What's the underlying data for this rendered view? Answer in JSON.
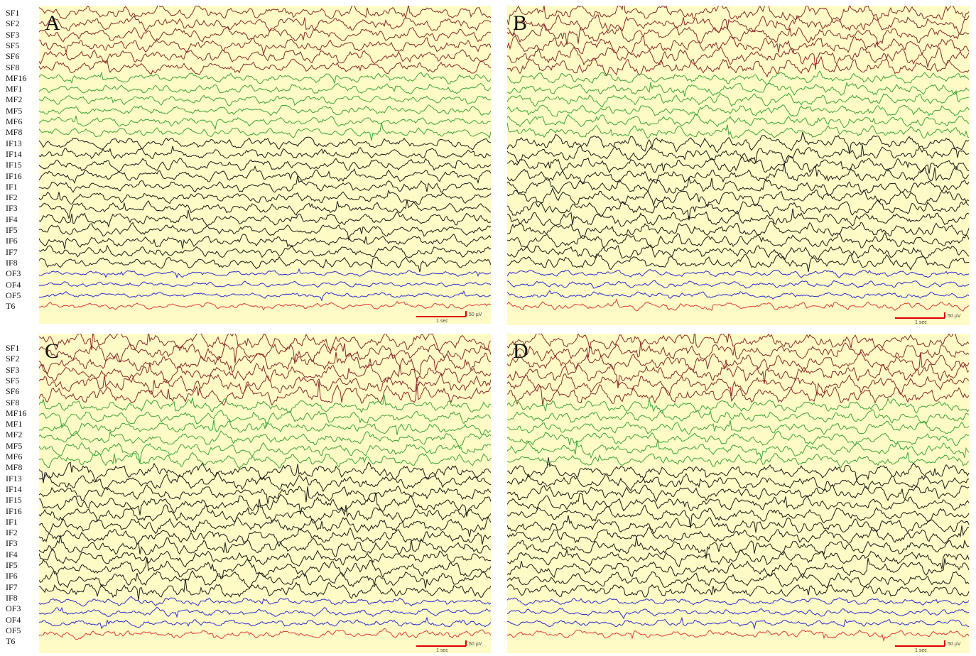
{
  "figure": {
    "panels": [
      {
        "id": "A",
        "letter": "A",
        "scale_time": "1 sec",
        "scale_amp": "50 µV"
      },
      {
        "id": "B",
        "letter": "B",
        "scale_time": "1 sec",
        "scale_amp": "50 µV"
      },
      {
        "id": "C",
        "letter": "C",
        "scale_time": "1 sec",
        "scale_amp": "50 µV"
      },
      {
        "id": "D",
        "letter": "D",
        "scale_time": "1 sec",
        "scale_amp": "50 µV"
      }
    ],
    "channel_labels": [
      "SF1",
      "SF2",
      "SF3",
      "SF5",
      "SF6",
      "SF8",
      "MF16",
      "MF1",
      "MF2",
      "MF5",
      "MF6",
      "MF8",
      "IF13",
      "IF14",
      "IF15",
      "IF16",
      "IF1",
      "IF2",
      "IF3",
      "IF4",
      "IF5",
      "IF6",
      "IF7",
      "IF8",
      "OF3",
      "OF4",
      "OF5",
      "T6"
    ]
  },
  "chart_data": {
    "type": "line",
    "description_axis": "multichannel EEG traces, time on x",
    "colors": {
      "SF": "#8b2a2a",
      "MF": "#3aa63a",
      "IF": "#1a1a1a",
      "OF": "#2d2dd0",
      "T": "#e03a3a",
      "background": "#fefbc6",
      "scale_bar": "#e00000"
    },
    "groups": [
      {
        "prefix": "SF",
        "channels": [
          "SF1",
          "SF2",
          "SF3",
          "SF5",
          "SF6",
          "SF8"
        ]
      },
      {
        "prefix": "MF",
        "channels": [
          "MF16",
          "MF1",
          "MF2",
          "MF5",
          "MF6",
          "MF8"
        ]
      },
      {
        "prefix": "IF",
        "channels": [
          "IF13",
          "IF14",
          "IF15",
          "IF16",
          "IF1",
          "IF2",
          "IF3",
          "IF4",
          "IF5",
          "IF6",
          "IF7",
          "IF8"
        ]
      },
      {
        "prefix": "OF",
        "channels": [
          "OF3",
          "OF4",
          "OF5"
        ]
      },
      {
        "prefix": "T",
        "channels": [
          "T6"
        ]
      }
    ],
    "scale_bar": {
      "time_sec": 1,
      "amplitude_uV": 50
    }
  }
}
